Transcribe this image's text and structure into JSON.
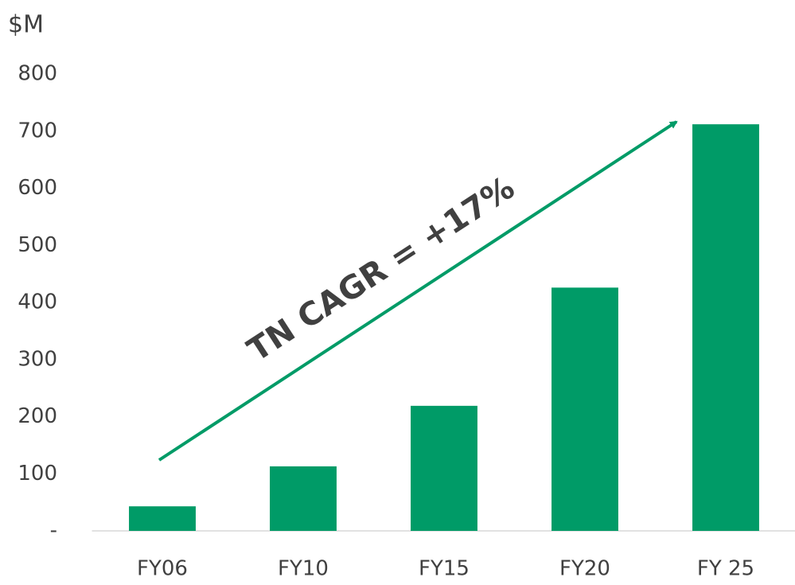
{
  "chart_data": {
    "type": "bar",
    "y_label": "$M",
    "annotation": "TN CAGR = +17%",
    "categories": [
      "FY06",
      "FY10",
      "FY15",
      "FY20",
      "FY 25"
    ],
    "values": [
      43,
      113,
      219,
      426,
      712
    ],
    "color": "#009b67",
    "ylim": [
      0,
      800
    ],
    "yticks": [
      {
        "value": 0,
        "label": "-"
      },
      100,
      200,
      300,
      400,
      500,
      600,
      700,
      800
    ],
    "grid": false
  }
}
